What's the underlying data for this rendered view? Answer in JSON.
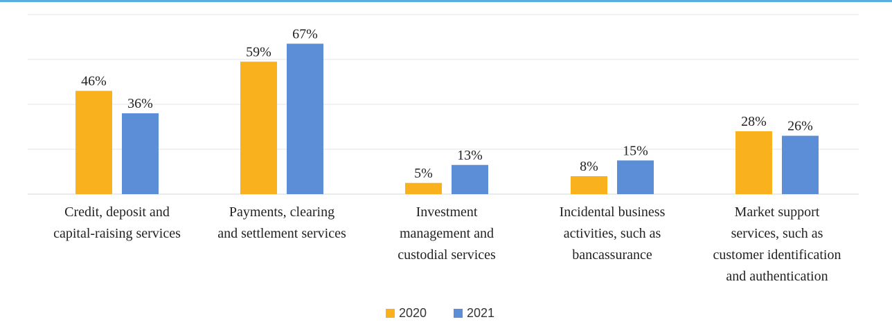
{
  "chart_data": {
    "type": "bar",
    "title": "",
    "xlabel": "",
    "ylabel": "",
    "ylim": [
      0,
      100
    ],
    "grid": true,
    "legend_position": "bottom",
    "categories": [
      [
        "Credit, deposit and",
        "capital-raising services"
      ],
      [
        "Payments, clearing",
        "and settlement services"
      ],
      [
        "Investment",
        "management and",
        "custodial services"
      ],
      [
        "Incidental business",
        "activities, such as",
        "bancassurance"
      ],
      [
        "Market support",
        "services, such as",
        "customer identification",
        "and authentication"
      ]
    ],
    "value_suffix": "%",
    "series": [
      {
        "name": "2020",
        "color": "#f9b11e",
        "values": [
          46,
          59,
          5,
          8,
          28
        ]
      },
      {
        "name": "2021",
        "color": "#5b8ed6",
        "values": [
          36,
          67,
          13,
          15,
          26
        ]
      }
    ]
  }
}
